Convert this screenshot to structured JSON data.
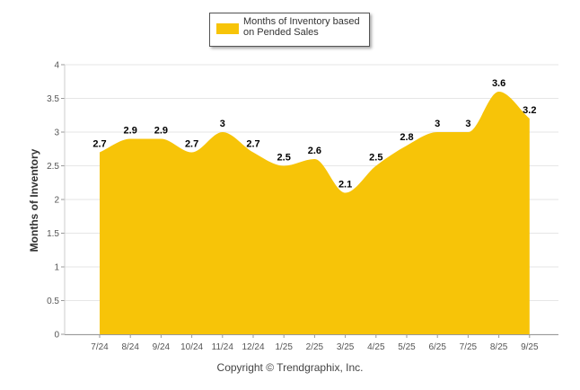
{
  "chart_data": {
    "type": "area",
    "title": "",
    "xlabel": "",
    "ylabel": "Months of Inventory",
    "ylim": [
      0,
      4
    ],
    "yticks": [
      0,
      0.5,
      1,
      1.5,
      2,
      2.5,
      3,
      3.5,
      4
    ],
    "ytick_labels": [
      "0",
      "0.5",
      "1",
      "1.5",
      "2",
      "2.5",
      "3",
      "3.5",
      "4"
    ],
    "grid": true,
    "legend_position": "top-center",
    "categories": [
      "7/24",
      "8/24",
      "9/24",
      "10/24",
      "11/24",
      "12/24",
      "1/25",
      "2/25",
      "3/25",
      "4/25",
      "5/25",
      "6/25",
      "7/25",
      "8/25",
      "9/25"
    ],
    "series": [
      {
        "name": "Months of Inventory based on Pended Sales",
        "color": "#f7c408",
        "values": [
          2.7,
          2.9,
          2.9,
          2.7,
          3,
          2.7,
          2.5,
          2.6,
          2.1,
          2.5,
          2.8,
          3,
          3,
          3.6,
          3.2
        ],
        "labels": [
          "2.7",
          "2.9",
          "2.9",
          "2.7",
          "3",
          "2.7",
          "2.5",
          "2.6",
          "2.1",
          "2.5",
          "2.8",
          "3",
          "3",
          "3.6",
          "3.2"
        ]
      }
    ]
  },
  "legend": {
    "label": "Months of Inventory based on Pended Sales"
  },
  "footer": {
    "copyright": "Copyright © Trendgraphix, Inc."
  }
}
